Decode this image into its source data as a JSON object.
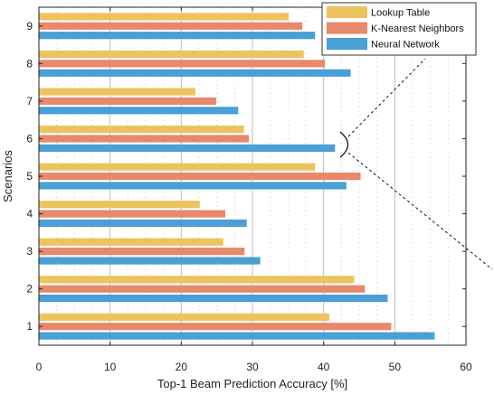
{
  "chart_data": {
    "type": "bar",
    "orientation": "horizontal",
    "xlabel": "Top-1 Beam Prediction Accuracy [%]",
    "ylabel": "Scenarios",
    "xlim": [
      0,
      60
    ],
    "xticks": [
      "0",
      "10",
      "20",
      "30",
      "40",
      "50",
      "60"
    ],
    "categories": [
      "1",
      "2",
      "3",
      "4",
      "5",
      "6",
      "7",
      "8",
      "9"
    ],
    "series": [
      {
        "name": "Lookup Table",
        "color": "#EDC35F",
        "values": [
          40.8,
          44.3,
          25.9,
          22.6,
          38.8,
          28.8,
          22.0,
          37.2,
          35.1
        ]
      },
      {
        "name": "K-Nearest Neighbors",
        "color": "#E8896B",
        "values": [
          49.5,
          45.8,
          28.9,
          26.2,
          45.2,
          29.5,
          24.9,
          40.2,
          37.0
        ]
      },
      {
        "name": "Neural Network",
        "color": "#4A9FD5",
        "values": [
          55.6,
          49.0,
          31.1,
          29.2,
          43.2,
          41.6,
          28.0,
          43.8,
          38.8
        ]
      }
    ],
    "grid": {
      "major_vertical": true,
      "minor_vertical_dotted": true
    },
    "legend_position": "top-right",
    "annotation": {
      "type": "zoom-bracket",
      "category": "6"
    }
  }
}
